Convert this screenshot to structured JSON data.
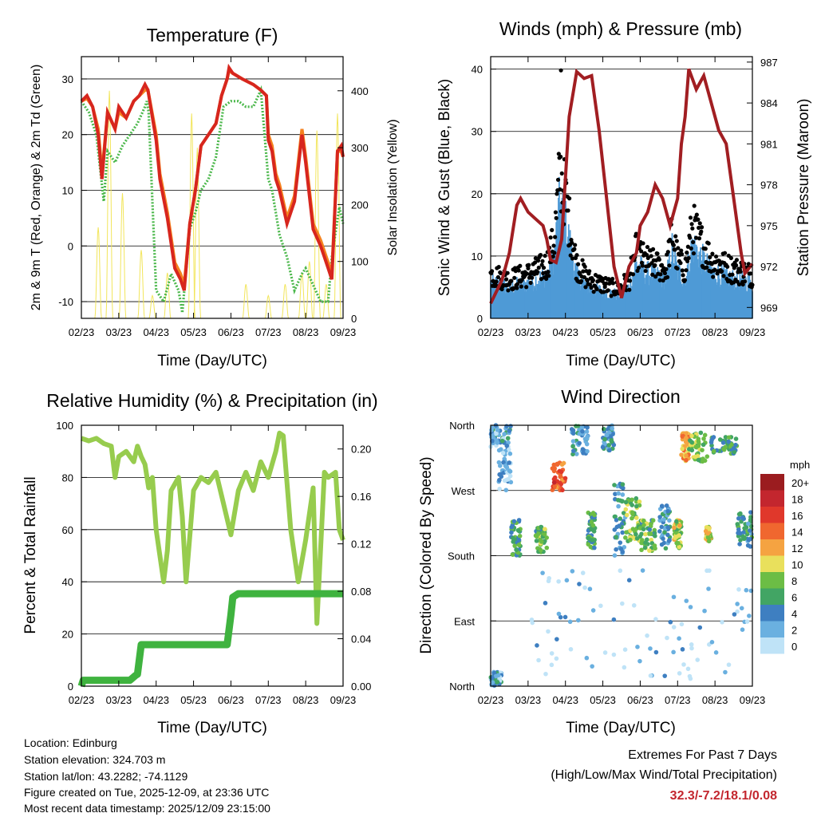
{
  "colors": {
    "red": "#d7261e",
    "orange": "#f5821f",
    "green": "#4cb84c",
    "yellow": "#f2e55a",
    "black": "#000000",
    "blue": "#4e9ad6",
    "maroon": "#a11e22",
    "rh": "#97cc4e",
    "precip": "#3fb33f",
    "extreme": "#c3262e"
  },
  "chart_data": [
    {
      "id": "temperature",
      "type": "line",
      "title": "Temperature (F)",
      "xlabel": "Time (Day/UTC)",
      "ylabel": "2m & 9m T (Red, Orange) & 2m Td (Green)",
      "y2label": "Solar Insolation (Yellow)",
      "xticks": [
        "02/23",
        "03/23",
        "04/23",
        "05/23",
        "06/23",
        "07/23",
        "08/23",
        "09/23"
      ],
      "xlim": [
        0,
        7
      ],
      "ylim": [
        -13,
        34
      ],
      "yticks": [
        -10,
        0,
        10,
        20,
        30
      ],
      "y2lim": [
        0,
        460
      ],
      "y2ticks": [
        0,
        100,
        200,
        300,
        400
      ],
      "series": [
        {
          "name": "2m T",
          "color": "red",
          "x": [
            0,
            0.15,
            0.3,
            0.45,
            0.55,
            0.7,
            0.9,
            1.0,
            1.2,
            1.4,
            1.55,
            1.7,
            1.78,
            2.0,
            2.1,
            2.3,
            2.5,
            2.65,
            2.75,
            2.9,
            3.05,
            3.2,
            3.4,
            3.6,
            3.75,
            3.9,
            3.95,
            4.05,
            4.3,
            4.6,
            4.8,
            4.95,
            5.0,
            5.1,
            5.2,
            5.3,
            5.5,
            5.7,
            5.9,
            6.0,
            6.2,
            6.4,
            6.5,
            6.6,
            6.7,
            6.85,
            6.95,
            7.0
          ],
          "y": [
            26,
            27,
            25,
            20,
            12,
            24,
            21,
            25,
            23,
            26,
            27,
            29,
            28,
            19,
            12,
            5,
            -4,
            -6,
            -8,
            4,
            10,
            18,
            20,
            22,
            27,
            30,
            32,
            31,
            30,
            29,
            28,
            27,
            19,
            17,
            12,
            10,
            4,
            8,
            20,
            15,
            3,
            0,
            -2,
            -4,
            -6,
            17,
            18,
            16
          ]
        },
        {
          "name": "9m T",
          "color": "orange",
          "x": [
            0,
            0.15,
            0.3,
            0.45,
            0.55,
            0.7,
            0.9,
            1.0,
            1.2,
            1.4,
            1.55,
            1.7,
            1.78,
            2.0,
            2.1,
            2.3,
            2.5,
            2.65,
            2.75,
            2.9,
            3.05,
            3.2,
            3.4,
            3.6,
            3.75,
            3.9,
            3.95,
            4.05,
            4.3,
            4.6,
            4.8,
            4.95,
            5.0,
            5.1,
            5.2,
            5.3,
            5.5,
            5.7,
            5.9,
            6.0,
            6.2,
            6.4,
            6.5,
            6.6,
            6.7,
            6.85,
            6.95,
            7.0
          ],
          "y": [
            26,
            26.5,
            25,
            21,
            13,
            24,
            21,
            24,
            23,
            26,
            27,
            28,
            28,
            20,
            13,
            6,
            -3,
            -5,
            -7,
            4,
            10,
            18,
            20,
            22,
            27,
            30,
            31.5,
            31,
            30,
            29,
            28,
            27,
            20,
            18,
            13,
            11,
            5,
            9,
            21,
            16,
            4,
            1,
            -1,
            -3,
            -5,
            17,
            17,
            16
          ]
        },
        {
          "name": "2m Td",
          "color": "green",
          "x": [
            0,
            0.2,
            0.4,
            0.6,
            0.7,
            0.9,
            1.1,
            1.3,
            1.5,
            1.7,
            1.75,
            1.8,
            2.0,
            2.2,
            2.4,
            2.6,
            2.7,
            2.9,
            3.05,
            3.2,
            3.4,
            3.6,
            3.8,
            4.0,
            4.2,
            4.4,
            4.6,
            4.8,
            5.0,
            5.1,
            5.3,
            5.5,
            5.7,
            5.9,
            6.0,
            6.2,
            6.4,
            6.6,
            6.7,
            6.9,
            7.0
          ],
          "y": [
            26,
            24,
            20,
            8,
            17,
            15,
            18,
            20,
            22,
            25,
            26,
            24,
            -8,
            -10,
            -5,
            -8,
            -12,
            3,
            6,
            10,
            12,
            16,
            25,
            26,
            26,
            25,
            25,
            28,
            12,
            10,
            2,
            -2,
            -8,
            -5,
            -4,
            -7,
            -10,
            -10,
            -2,
            7,
            4
          ]
        }
      ],
      "solar_peaks_x": [
        0.45,
        0.75,
        1.1,
        1.6,
        1.9,
        2.3,
        2.95,
        3.1,
        4.4,
        5.0,
        5.45,
        5.9,
        6.1,
        6.3,
        6.55,
        6.85
      ],
      "solar_peaks_y": [
        160,
        400,
        220,
        120,
        40,
        80,
        360,
        300,
        60,
        40,
        60,
        80,
        100,
        330,
        60,
        360
      ]
    },
    {
      "id": "winds",
      "type": "scatter",
      "title": "Winds (mph) & Pressure (mb)",
      "xlabel": "Time (Day/UTC)",
      "ylabel": "Sonic Wind & Gust (Blue, Black)",
      "y2label": "Station Pressure (Maroon)",
      "xticks": [
        "02/23",
        "03/23",
        "04/23",
        "05/23",
        "06/23",
        "07/23",
        "08/23",
        "09/23"
      ],
      "xlim": [
        0,
        7
      ],
      "ylim": [
        0,
        42
      ],
      "yticks": [
        0,
        10,
        20,
        30,
        40
      ],
      "y2lim": [
        968.2,
        987.4
      ],
      "y2ticks": [
        969,
        972,
        975,
        978,
        981,
        984,
        987
      ],
      "gust_envelope_x": [
        0,
        0.5,
        1.0,
        1.5,
        1.7,
        1.85,
        1.95,
        2.1,
        2.3,
        2.6,
        3.0,
        3.4,
        3.7,
        3.9,
        4.1,
        4.4,
        4.7,
        4.85,
        5.0,
        5.2,
        5.4,
        5.6,
        5.9,
        6.2,
        6.5,
        7.0
      ],
      "gust_envelope_y": [
        9,
        8,
        9,
        11,
        16,
        30,
        27,
        20,
        11,
        8,
        7,
        6,
        8,
        14,
        12,
        11,
        10,
        18,
        12,
        10,
        19,
        16,
        12,
        11,
        10,
        9
      ],
      "series": [
        {
          "name": "Station Pressure",
          "color": "maroon",
          "x": [
            0,
            0.3,
            0.5,
            0.7,
            0.8,
            1.0,
            1.2,
            1.4,
            1.5,
            1.6,
            1.75,
            1.9,
            2.1,
            2.3,
            2.5,
            2.7,
            2.9,
            3.1,
            3.3,
            3.5,
            3.7,
            3.9,
            4.0,
            4.2,
            4.4,
            4.6,
            4.8,
            5.0,
            5.1,
            5.2,
            5.3,
            5.5,
            5.7,
            5.9,
            6.1,
            6.3,
            6.5,
            6.7,
            6.8,
            7.0
          ],
          "y": [
            969.3,
            971,
            973,
            976.5,
            977,
            976,
            975.5,
            975,
            974,
            972.5,
            972.3,
            974,
            983,
            986.3,
            985.8,
            986,
            982,
            977,
            972,
            969.7,
            972,
            973,
            975,
            976,
            978,
            977,
            975,
            977,
            981,
            983,
            986.5,
            985,
            986,
            984,
            982,
            981,
            977,
            973,
            971.5,
            972.2
          ]
        }
      ]
    },
    {
      "id": "humidity",
      "type": "line",
      "title": "Relative Humidity (%) & Precipitation (in)",
      "xlabel": "Time (Day/UTC)",
      "ylabel": "Percent & Total Rainfall",
      "xticks": [
        "02/23",
        "03/23",
        "04/23",
        "05/23",
        "06/23",
        "07/23",
        "08/23",
        "09/23"
      ],
      "xlim": [
        0,
        7
      ],
      "ylim": [
        0,
        100
      ],
      "yticks": [
        0,
        20,
        40,
        60,
        80,
        100
      ],
      "y2lim": [
        0,
        0.22
      ],
      "y2ticks": [
        "0.00",
        "0.04",
        "0.08",
        "0.12",
        "0.16",
        "0.20"
      ],
      "series": [
        {
          "name": "Relative Humidity",
          "color": "rh",
          "x": [
            0,
            0.2,
            0.4,
            0.6,
            0.8,
            0.9,
            1.0,
            1.2,
            1.4,
            1.5,
            1.6,
            1.7,
            1.8,
            1.9,
            2.0,
            2.2,
            2.3,
            2.4,
            2.6,
            2.7,
            2.8,
            3.0,
            3.2,
            3.4,
            3.6,
            3.8,
            4.0,
            4.2,
            4.4,
            4.6,
            4.8,
            5.0,
            5.2,
            5.3,
            5.4,
            5.6,
            5.8,
            6.0,
            6.2,
            6.3,
            6.5,
            6.6,
            6.8,
            6.9,
            7.0
          ],
          "y": [
            95,
            94,
            95,
            93,
            92,
            80,
            88,
            90,
            86,
            92,
            88,
            85,
            76,
            80,
            60,
            40,
            52,
            75,
            80,
            65,
            40,
            75,
            80,
            78,
            82,
            70,
            58,
            75,
            82,
            75,
            86,
            80,
            90,
            97,
            96,
            60,
            40,
            56,
            76,
            24,
            82,
            80,
            82,
            60,
            56
          ]
        },
        {
          "name": "Precipitation",
          "color": "precip",
          "x": [
            0,
            0.05,
            1.3,
            1.45,
            1.5,
            1.6,
            3.9,
            4.0,
            4.05,
            4.2,
            7.0
          ],
          "y": [
            0,
            0.005,
            0.005,
            0.009,
            0.01,
            0.035,
            0.035,
            0.06,
            0.075,
            0.078,
            0.078
          ]
        }
      ]
    },
    {
      "id": "direction",
      "type": "scatter",
      "title": "Wind Direction",
      "xlabel": "Time (Day/UTC)",
      "ylabel": "Direction (Colored By Speed)",
      "xticks": [
        "02/23",
        "03/23",
        "04/23",
        "05/23",
        "06/23",
        "07/23",
        "08/23",
        "09/23"
      ],
      "xlim": [
        0,
        7
      ],
      "ylim": [
        0,
        360
      ],
      "yticks": [
        "North",
        "East",
        "South",
        "West",
        "North"
      ],
      "legend_title": "mph",
      "legend_labels": [
        "20+",
        "18",
        "16",
        "14",
        "12",
        "10",
        "8",
        "6",
        "4",
        "2",
        "0"
      ],
      "legend_colors": [
        "#9b1c1f",
        "#c3262e",
        "#e0382b",
        "#f0672f",
        "#f5a341",
        "#e9e05c",
        "#6cbd45",
        "#42a564",
        "#3e7fc1",
        "#6ab0e0",
        "#bfe3f7"
      ],
      "clusters": [
        {
          "x0": 0.0,
          "x1": 0.55,
          "d0": 330,
          "d1": 360,
          "s": 3
        },
        {
          "x0": 0.2,
          "x1": 0.55,
          "d0": 270,
          "d1": 330,
          "s": 2
        },
        {
          "x0": 0.0,
          "x1": 0.3,
          "d0": 0,
          "d1": 20,
          "s": 3
        },
        {
          "x0": 0.55,
          "x1": 0.8,
          "d0": 180,
          "d1": 230,
          "s": 6
        },
        {
          "x0": 1.2,
          "x1": 1.5,
          "d0": 185,
          "d1": 220,
          "s": 7
        },
        {
          "x0": 1.65,
          "x1": 2.0,
          "d0": 270,
          "d1": 310,
          "s": 15
        },
        {
          "x0": 2.15,
          "x1": 2.6,
          "d0": 320,
          "d1": 360,
          "s": 4
        },
        {
          "x0": 2.6,
          "x1": 2.8,
          "d0": 190,
          "d1": 240,
          "s": 6
        },
        {
          "x0": 3.0,
          "x1": 3.3,
          "d0": 325,
          "d1": 360,
          "s": 4
        },
        {
          "x0": 3.3,
          "x1": 3.6,
          "d0": 180,
          "d1": 280,
          "s": 4
        },
        {
          "x0": 3.6,
          "x1": 4.0,
          "d0": 200,
          "d1": 260,
          "s": 8
        },
        {
          "x0": 4.0,
          "x1": 4.4,
          "d0": 185,
          "d1": 230,
          "s": 7
        },
        {
          "x0": 4.5,
          "x1": 4.8,
          "d0": 190,
          "d1": 250,
          "s": 4
        },
        {
          "x0": 4.9,
          "x1": 5.1,
          "d0": 190,
          "d1": 230,
          "s": 9
        },
        {
          "x0": 5.1,
          "x1": 5.3,
          "d0": 310,
          "d1": 350,
          "s": 12
        },
        {
          "x0": 5.3,
          "x1": 5.8,
          "d0": 310,
          "d1": 350,
          "s": 8
        },
        {
          "x0": 5.9,
          "x1": 6.6,
          "d0": 320,
          "d1": 345,
          "s": 6
        },
        {
          "x0": 5.75,
          "x1": 5.9,
          "d0": 200,
          "d1": 220,
          "s": 10
        },
        {
          "x0": 6.6,
          "x1": 7.0,
          "d0": 190,
          "d1": 240,
          "s": 5
        },
        {
          "x0": 0.8,
          "x1": 7.0,
          "d0": 10,
          "d1": 160,
          "s": 1
        }
      ]
    }
  ],
  "info": {
    "location": "Location: Edinburg",
    "elevation": "Station elevation: 324.703 m",
    "latlon": "Station lat/lon: 43.2282; -74.1129",
    "created": "Figure created on Tue, 2025-12-09, at 23:36 UTC",
    "recent": "Most recent data timestamp: 2025/12/09 23:15:00"
  },
  "extremes": {
    "line1": "Extremes For Past 7 Days",
    "line2": "(High/Low/Max Wind/Total Precipitation)",
    "values": "32.3/-7.2/18.1/0.08"
  }
}
